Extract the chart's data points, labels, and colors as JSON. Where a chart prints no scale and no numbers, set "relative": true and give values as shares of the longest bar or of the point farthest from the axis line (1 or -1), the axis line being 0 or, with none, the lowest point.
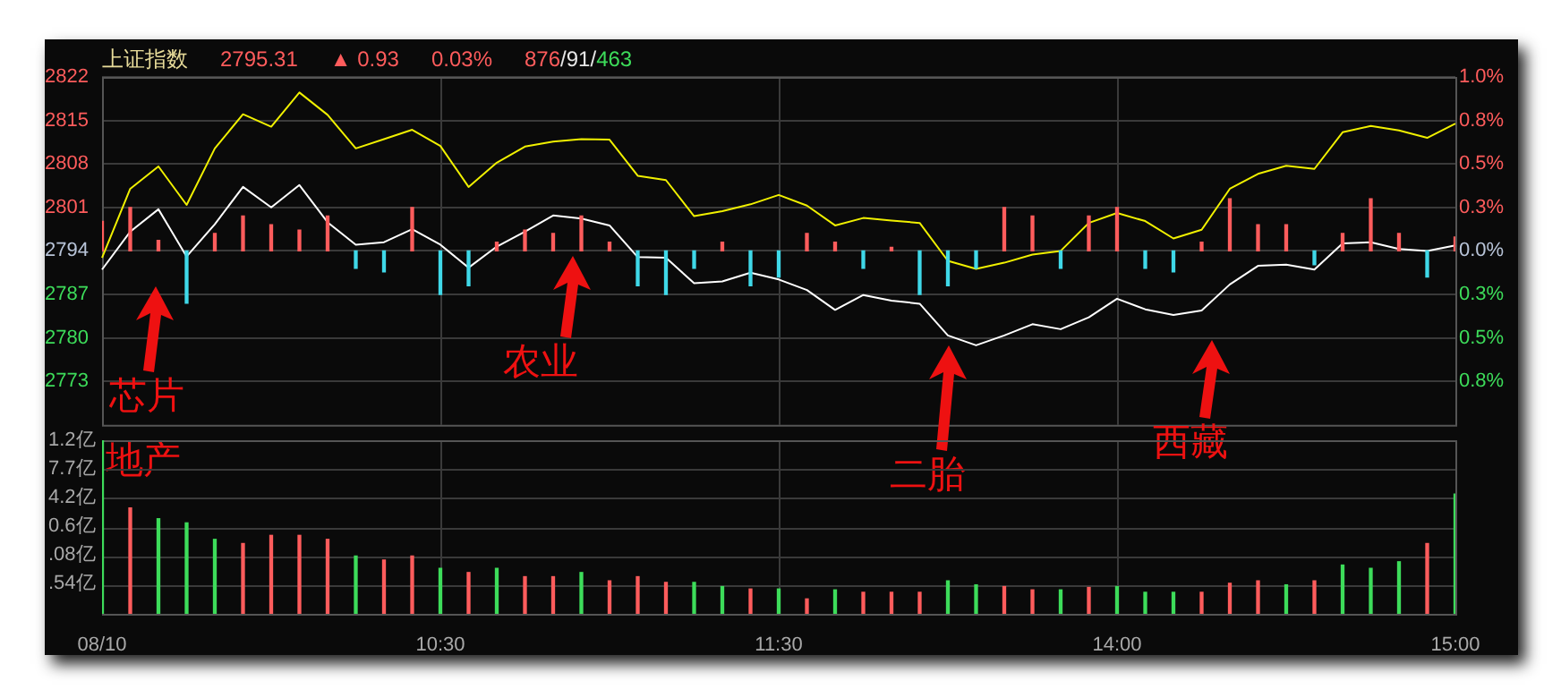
{
  "chart_data": [
    {
      "type": "line",
      "title": "上证指数",
      "annotations": [
        "2795.31",
        "▲ 0.93",
        "0.03%",
        "876/91/463",
        "芯片",
        "地产",
        "农业",
        "二胎",
        "西藏"
      ],
      "categories": [
        null,
        null,
        null,
        null,
        null,
        null,
        null,
        null,
        null,
        null,
        null,
        null,
        null,
        null,
        null,
        null,
        null,
        null,
        null,
        null,
        null,
        null,
        null,
        null,
        null,
        null,
        null,
        null,
        null,
        null,
        null,
        null,
        null,
        null,
        null,
        null,
        null,
        null,
        null,
        null,
        null,
        null,
        null,
        null,
        null,
        null,
        null,
        null,
        null
      ],
      "series": [
        {
          "type": "bar",
          "axis": "y2",
          "values": [
            0.17,
            0.25,
            0.06,
            -0.3,
            0.1,
            0.2,
            0.15,
            0.12,
            0.2,
            -0.1,
            -0.12,
            0.25,
            -0.25,
            -0.2,
            0.05,
            0.12,
            0.1,
            0.2,
            0.05,
            -0.2,
            -0.25,
            -0.1,
            0.05,
            -0.2,
            -0.15,
            0.1,
            0.05,
            -0.1,
            0.02,
            -0.25,
            -0.2,
            -0.1,
            0.25,
            0.2,
            -0.1,
            0.2,
            0.25,
            -0.1,
            -0.12,
            0.05,
            0.3,
            0.15,
            0.15,
            -0.08,
            0.1,
            0.3,
            0.1,
            -0.15,
            0.08
          ],
          "colors": [
            "#ff5c5c",
            "#ff5c5c",
            "#ff5c5c",
            "#3fd8e8",
            "#ff5c5c",
            "#ff5c5c",
            "#ff5c5c",
            "#ff5c5c",
            "#ff5c5c",
            "#3fd8e8",
            "#3fd8e8",
            "#ff5c5c",
            "#3fd8e8",
            "#3fd8e8",
            "#ff5c5c",
            "#ff5c5c",
            "#ff5c5c",
            "#ff5c5c",
            "#ff5c5c",
            "#3fd8e8",
            "#3fd8e8",
            "#3fd8e8",
            "#ff5c5c",
            "#3fd8e8",
            "#3fd8e8",
            "#ff5c5c",
            "#ff5c5c",
            "#3fd8e8",
            "#ff5c5c",
            "#3fd8e8",
            "#3fd8e8",
            "#3fd8e8",
            "#ff5c5c",
            "#ff5c5c",
            "#3fd8e8",
            "#ff5c5c",
            "#ff5c5c",
            "#3fd8e8",
            "#3fd8e8",
            "#ff5c5c",
            "#ff5c5c",
            "#ff5c5c",
            "#ff5c5c",
            "#3fd8e8",
            "#ff5c5c",
            "#ff5c5c",
            "#ff5c5c",
            "#3fd8e8",
            "#ff5c5c"
          ]
        },
        {
          "color": "#f0f000",
          "values": [
            2792.9,
            2804.0,
            2807.6,
            2801.4,
            2810.5,
            2816.0,
            2814.0,
            2819.5,
            2815.9,
            2810.5,
            2812.0,
            2813.5,
            2810.9,
            2804.3,
            2808.2,
            2810.8,
            2811.6,
            2812.0,
            2811.9,
            2806.1,
            2805.4,
            2799.6,
            2800.4,
            2801.5,
            2803.0,
            2801.3,
            2798.1,
            2799.3,
            2798.9,
            2798.5,
            2792.4,
            2791.1,
            2792.1,
            2793.4,
            2794.0,
            2798.5,
            2800.1,
            2798.8,
            2796.0,
            2797.4,
            2804.0,
            2806.4,
            2807.7,
            2807.2,
            2813.1,
            2814.1,
            2813.4,
            2812.2,
            2814.5
          ]
        },
        {
          "color": "#ffffff",
          "values": [
            2791.0,
            2797.1,
            2800.7,
            2793.1,
            2798.3,
            2804.3,
            2801.0,
            2804.6,
            2798.6,
            2795.0,
            2795.4,
            2797.5,
            2795.0,
            2791.3,
            2794.7,
            2797.1,
            2799.7,
            2799.2,
            2798.1,
            2793.0,
            2792.9,
            2788.8,
            2789.1,
            2790.5,
            2789.4,
            2787.7,
            2784.5,
            2786.9,
            2786.0,
            2785.5,
            2780.4,
            2778.8,
            2780.4,
            2782.2,
            2781.4,
            2783.3,
            2786.3,
            2784.6,
            2783.7,
            2784.4,
            2788.6,
            2791.6,
            2791.8,
            2791.0,
            2795.2,
            2795.4,
            2794.3,
            2794.0,
            2794.9
          ]
        }
      ],
      "ylim": [
        2766,
        2822
      ],
      "yticks": [
        2773,
        2780,
        2787,
        2794,
        2801,
        2808,
        2815,
        2822
      ],
      "y2lim": [
        -1.0,
        1.0
      ],
      "y2ticks": [
        {
          "value": -0.75,
          "label": "0.8%"
        },
        {
          "value": -0.5,
          "label": "0.5%"
        },
        {
          "value": -0.25,
          "label": "0.3%"
        },
        {
          "value": 0,
          "label": "0.0%"
        },
        {
          "value": 0.25,
          "label": "0.3%"
        },
        {
          "value": 0.5,
          "label": "0.5%"
        },
        {
          "value": 0.75,
          "label": "0.8%"
        },
        {
          "value": 1.0,
          "label": "1.0%"
        }
      ],
      "grid": true,
      "tick_labels": "y"
    },
    {
      "type": "bar",
      "categories": [
        "08/10",
        null,
        null,
        null,
        null,
        null,
        null,
        null,
        null,
        null,
        null,
        null,
        "10:30",
        null,
        null,
        null,
        null,
        null,
        null,
        null,
        null,
        null,
        null,
        null,
        "11:30",
        null,
        null,
        null,
        null,
        null,
        null,
        null,
        null,
        null,
        null,
        null,
        "14:00",
        null,
        null,
        null,
        null,
        null,
        null,
        null,
        null,
        null,
        null,
        null,
        "15:00"
      ],
      "relative": true,
      "annotations": [
        "1.2亿",
        "7.7亿",
        "4.2亿",
        "0.6亿",
        ".08亿",
        ".54亿"
      ],
      "values": [
        1,
        0.61,
        0.548,
        0.524,
        0.429,
        0.405,
        0.452,
        0.452,
        0.429,
        0.333,
        0.31,
        0.333,
        0.262,
        0.238,
        0.262,
        0.214,
        0.214,
        0.238,
        0.19,
        0.214,
        0.181,
        0.181,
        0.157,
        0.143,
        0.143,
        0.086,
        0.138,
        0.124,
        0.124,
        0.124,
        0.19,
        0.167,
        0.157,
        0.138,
        0.138,
        0.152,
        0.157,
        0.124,
        0.124,
        0.124,
        0.176,
        0.19,
        0.167,
        0.19,
        0.281,
        0.262,
        0.3,
        0.405,
        0.69
      ],
      "colors": [
        "#3ddc5a",
        "#ff5c5c",
        "#3ddc5a",
        "#3ddc5a",
        "#3ddc5a",
        "#ff5c5c",
        "#ff5c5c",
        "#ff5c5c",
        "#ff5c5c",
        "#3ddc5a",
        "#ff5c5c",
        "#ff5c5c",
        "#3ddc5a",
        "#ff5c5c",
        "#3ddc5a",
        "#ff5c5c",
        "#ff5c5c",
        "#3ddc5a",
        "#ff5c5c",
        "#ff5c5c",
        "#ff5c5c",
        "#3ddc5a",
        "#3ddc5a",
        "#ff5c5c",
        "#3ddc5a",
        "#ff5c5c",
        "#3ddc5a",
        "#ff5c5c",
        "#ff5c5c",
        "#ff5c5c",
        "#3ddc5a",
        "#3ddc5a",
        "#ff5c5c",
        "#ff5c5c",
        "#3ddc5a",
        "#ff5c5c",
        "#3ddc5a",
        "#3ddc5a",
        "#3ddc5a",
        "#ff5c5c",
        "#ff5c5c",
        "#ff5c5c",
        "#3ddc5a",
        "#ff5c5c",
        "#3ddc5a",
        "#3ddc5a",
        "#3ddc5a",
        "#ff5c5c",
        "#3ddc5a"
      ],
      "grid": true
    }
  ]
}
